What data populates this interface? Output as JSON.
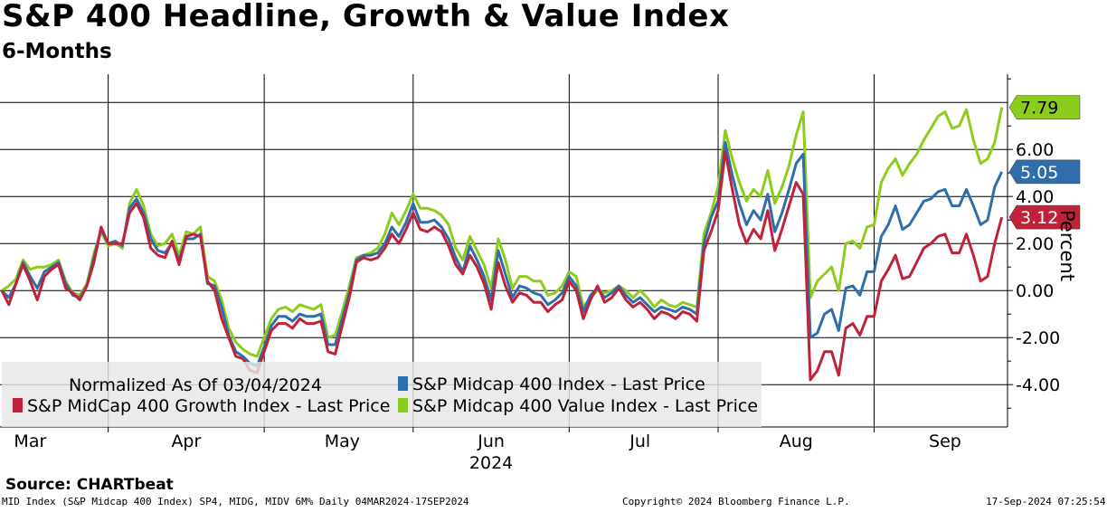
{
  "title": "S&P 400 Headline, Growth & Value Index",
  "subtitle": "6-Months",
  "source": "Source: CHARTbeat",
  "footer": {
    "left": "MID Index (S&P Midcap 400 Index) SP4, MIDG, MIDV 6M%  Daily 04MAR2024-17SEP2024",
    "mid": "Copyright© 2024 Bloomberg Finance L.P.",
    "right": "17-Sep-2024 07:25:54"
  },
  "legend": {
    "header": "Normalized As Of 03/04/2024"
  },
  "chart_data": {
    "type": "line",
    "title": "S&P 400 Headline, Growth & Value Index",
    "ylabel": "Percent",
    "xlabel": "2024",
    "ylim": [
      -5.8,
      9.2
    ],
    "yticks": [
      -4.0,
      -2.0,
      0.0,
      2.0,
      4.0,
      6.0
    ],
    "ytick_labels": [
      "-4.00",
      "-2.00",
      "0.00",
      "2.00",
      "4.00",
      "6.00"
    ],
    "xtick_labels": [
      "Mar",
      "Apr",
      "May",
      "Jun",
      "Jul",
      "Aug",
      "Sep"
    ],
    "xtick_index": [
      4,
      26,
      48,
      69,
      90,
      112,
      133
    ],
    "month_boundaries": [
      15,
      37,
      58,
      80,
      101,
      123
    ],
    "x_count": 140,
    "year_label": "2024",
    "series": [
      {
        "name": "S&P Midcap 400 Index - Last Price",
        "color": "#2f6eaa",
        "last_label": "5.05",
        "values": [
          0.0,
          -0.3,
          0.3,
          1.2,
          0.6,
          0.1,
          0.8,
          1.0,
          1.2,
          0.3,
          -0.2,
          -0.3,
          0.2,
          1.4,
          2.6,
          2.0,
          2.1,
          1.9,
          3.5,
          3.9,
          3.3,
          2.2,
          1.7,
          1.6,
          2.0,
          1.3,
          2.2,
          2.2,
          2.4,
          0.3,
          0.2,
          -0.7,
          -1.9,
          -2.6,
          -2.8,
          -3.1,
          -3.2,
          -2.4,
          -1.5,
          -1.1,
          -1.1,
          -1.3,
          -1.0,
          -1.1,
          -1.1,
          -1.0,
          -2.3,
          -2.3,
          -1.2,
          -0.1,
          1.3,
          1.5,
          1.5,
          1.6,
          2.0,
          2.7,
          2.3,
          2.9,
          3.7,
          2.9,
          2.9,
          3.0,
          2.7,
          2.2,
          1.4,
          0.8,
          1.9,
          1.3,
          0.6,
          -0.4,
          1.7,
          0.7,
          -0.3,
          0.2,
          0.1,
          -0.1,
          -0.2,
          -0.6,
          -0.4,
          -0.1,
          0.6,
          0.2,
          -0.9,
          -0.2,
          0.1,
          -0.3,
          -0.1,
          0.2,
          -0.2,
          -0.5,
          -0.3,
          -0.6,
          -0.9,
          -0.7,
          -0.8,
          -0.9,
          -0.7,
          -0.8,
          -1.0,
          2.0,
          3.1,
          3.8,
          6.3,
          4.9,
          3.7,
          2.8,
          3.4,
          3.0,
          4.1,
          2.5,
          3.3,
          4.3,
          5.4,
          5.8,
          -2.0,
          -1.8,
          -1.0,
          -0.8,
          -1.7,
          0.1,
          0.2,
          -0.2,
          0.8,
          0.8,
          2.3,
          2.8,
          3.6,
          2.6,
          2.8,
          3.3,
          3.8,
          3.9,
          4.2,
          4.3,
          3.6,
          3.6,
          4.3,
          3.6,
          2.8,
          3.0,
          4.4,
          5.05
        ]
      },
      {
        "name": "S&P MidCap 400 Growth Index - Last Price",
        "color": "#c0223a",
        "last_label": "3.12",
        "values": [
          0.0,
          -0.6,
          0.3,
          1.1,
          0.4,
          -0.4,
          0.6,
          0.9,
          1.1,
          0.1,
          -0.1,
          -0.4,
          0.2,
          1.2,
          2.7,
          2.0,
          2.0,
          2.0,
          3.3,
          3.7,
          3.1,
          1.8,
          1.5,
          1.4,
          2.1,
          1.1,
          2.3,
          2.4,
          2.3,
          0.4,
          0.0,
          -1.2,
          -2.0,
          -2.8,
          -2.9,
          -3.4,
          -3.5,
          -2.6,
          -1.7,
          -1.4,
          -1.4,
          -1.6,
          -1.2,
          -1.4,
          -1.4,
          -1.3,
          -2.6,
          -2.7,
          -1.5,
          -0.3,
          1.2,
          1.4,
          1.3,
          1.4,
          1.8,
          2.4,
          2.0,
          2.6,
          3.3,
          2.6,
          2.5,
          2.7,
          2.5,
          1.9,
          1.1,
          0.7,
          1.5,
          1.0,
          0.3,
          -0.8,
          1.2,
          0.2,
          -0.5,
          -0.1,
          -0.2,
          -0.5,
          -0.5,
          -0.9,
          -0.6,
          -0.4,
          0.4,
          0.0,
          -1.2,
          -0.4,
          0.2,
          -0.5,
          -0.3,
          0.1,
          -0.4,
          -0.7,
          -0.5,
          -0.8,
          -1.2,
          -0.9,
          -1.0,
          -1.2,
          -0.9,
          -1.0,
          -1.3,
          1.7,
          2.5,
          3.4,
          5.9,
          4.3,
          2.8,
          2.0,
          2.6,
          2.2,
          3.4,
          1.7,
          2.6,
          3.6,
          4.6,
          4.1,
          -3.8,
          -3.4,
          -2.6,
          -2.6,
          -3.6,
          -1.6,
          -1.4,
          -1.9,
          -1.1,
          -1.1,
          0.4,
          0.9,
          1.5,
          0.5,
          0.6,
          1.2,
          1.8,
          2.0,
          2.3,
          2.4,
          1.6,
          1.6,
          2.4,
          1.5,
          0.4,
          0.6,
          2.0,
          3.12
        ]
      },
      {
        "name": "S&P Midcap 400 Value Index - Last Price",
        "color": "#8ccc1c",
        "last_label": "7.79",
        "values": [
          0.0,
          0.2,
          0.5,
          1.3,
          0.9,
          1.0,
          1.0,
          1.1,
          1.3,
          0.4,
          -0.1,
          -0.2,
          0.3,
          1.6,
          2.5,
          1.9,
          2.0,
          1.8,
          3.7,
          4.3,
          3.6,
          2.4,
          1.9,
          2.0,
          2.4,
          1.5,
          2.5,
          2.4,
          2.7,
          0.6,
          0.4,
          -0.4,
          -1.6,
          -2.2,
          -2.5,
          -2.7,
          -2.8,
          -2.0,
          -1.2,
          -0.8,
          -0.7,
          -0.9,
          -0.6,
          -0.7,
          -0.8,
          -0.6,
          -2.0,
          -1.9,
          -0.9,
          0.2,
          1.4,
          1.5,
          1.6,
          1.8,
          2.4,
          3.3,
          2.8,
          3.4,
          4.1,
          3.5,
          3.5,
          3.4,
          3.2,
          2.8,
          1.8,
          1.3,
          2.3,
          1.7,
          1.1,
          0.1,
          2.2,
          1.3,
          0.1,
          0.6,
          0.6,
          0.4,
          0.4,
          -0.2,
          -0.1,
          0.2,
          0.8,
          0.6,
          -0.7,
          -0.3,
          0.0,
          -0.1,
          0.0,
          0.2,
          0.0,
          -0.3,
          0.0,
          -0.3,
          -0.7,
          -0.4,
          -0.6,
          -0.7,
          -0.5,
          -0.6,
          -0.7,
          2.4,
          3.3,
          4.4,
          6.8,
          5.6,
          4.6,
          3.8,
          4.3,
          4.0,
          5.1,
          3.7,
          4.4,
          5.3,
          6.6,
          7.6,
          -0.3,
          0.4,
          0.7,
          1.0,
          0.0,
          2.0,
          2.1,
          1.8,
          2.7,
          2.8,
          4.6,
          5.2,
          5.6,
          4.9,
          5.4,
          5.8,
          6.4,
          6.9,
          7.4,
          7.6,
          6.9,
          7.0,
          7.7,
          6.4,
          5.4,
          5.6,
          6.3,
          7.79
        ]
      }
    ]
  }
}
